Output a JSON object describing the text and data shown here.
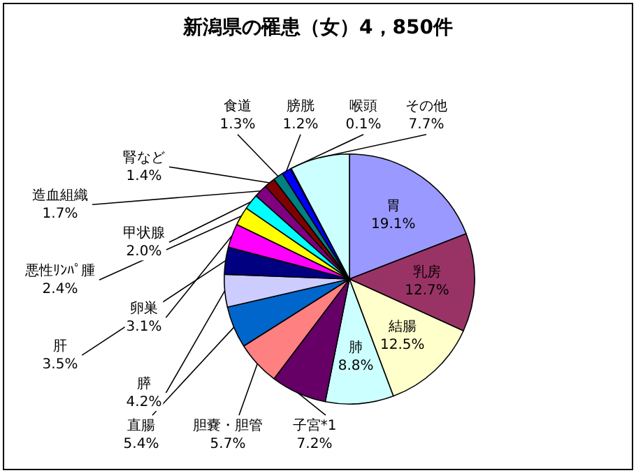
{
  "chart_data": {
    "type": "pie",
    "title": "新潟県の罹患（女）4，850件",
    "categories": [
      "胃",
      "乳房",
      "結腸",
      "肺",
      "子宮*1",
      "胆嚢・胆管",
      "直腸",
      "膵",
      "肝",
      "卵巣",
      "悪性ﾘﾝﾊﾟ腫",
      "甲状腺",
      "造血組織",
      "腎など",
      "食道",
      "膀胱",
      "喉頭",
      "その他"
    ],
    "values": [
      19.1,
      12.7,
      12.5,
      8.8,
      7.2,
      5.7,
      5.4,
      4.2,
      3.5,
      3.1,
      2.4,
      2.0,
      1.7,
      1.4,
      1.3,
      1.2,
      0.1,
      7.7
    ],
    "value_labels": [
      "19.1%",
      "12.7%",
      "12.5%",
      "8.8%",
      "7.2%",
      "5.7%",
      "5.4%",
      "4.2%",
      "3.5%",
      "3.1%",
      "2.4%",
      "2.0%",
      "1.7%",
      "1.4%",
      "1.3%",
      "1.2%",
      "0.1%",
      "7.7%"
    ],
    "colors": [
      "#9999ff",
      "#993366",
      "#ffffcc",
      "#ccffff",
      "#660066",
      "#ff8080",
      "#0066cc",
      "#ccccff",
      "#000080",
      "#ff00ff",
      "#ffff00",
      "#00ffff",
      "#800080",
      "#800000",
      "#008080",
      "#0000ff",
      "#00ccff",
      "#ccffff"
    ]
  }
}
